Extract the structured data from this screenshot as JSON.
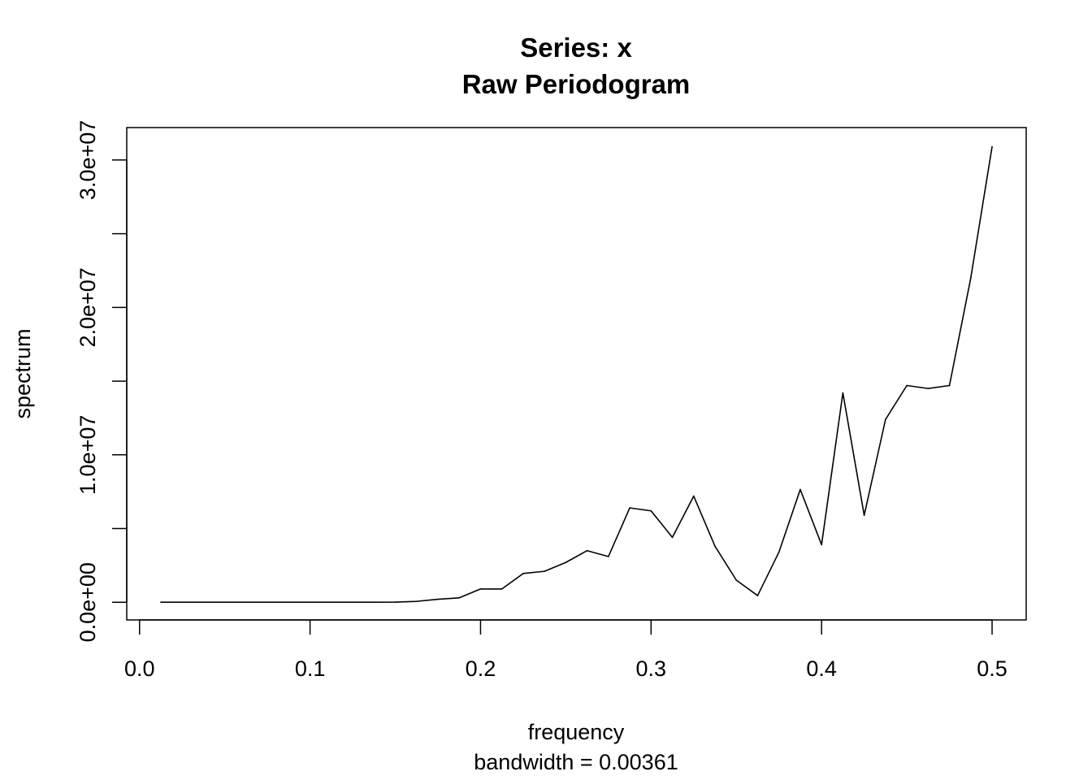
{
  "chart_data": {
    "type": "line",
    "title": "Series: x",
    "subtitle": "Raw Periodogram",
    "xlabel": "frequency",
    "xsublabel": "bandwidth = 0.00361",
    "ylabel": "spectrum",
    "xlim": [
      -0.0075,
      0.52
    ],
    "ylim": [
      -1200000,
      32200000
    ],
    "grid": false,
    "x_ticks": [
      0.0,
      0.1,
      0.2,
      0.3,
      0.4,
      0.5
    ],
    "x_tick_labels": [
      "0.0",
      "0.1",
      "0.2",
      "0.3",
      "0.4",
      "0.5"
    ],
    "y_ticks": [
      0,
      5000000,
      10000000,
      15000000,
      20000000,
      25000000,
      30000000
    ],
    "y_tick_labels": [
      "0.0e+00",
      "",
      "1.0e+07",
      "",
      "2.0e+07",
      "",
      "3.0e+07"
    ],
    "x": [
      0.0125,
      0.025,
      0.0375,
      0.05,
      0.0625,
      0.075,
      0.0875,
      0.1,
      0.1125,
      0.125,
      0.1375,
      0.15,
      0.1625,
      0.175,
      0.1875,
      0.2,
      0.2125,
      0.225,
      0.2375,
      0.25,
      0.2625,
      0.275,
      0.2875,
      0.3,
      0.3125,
      0.325,
      0.3375,
      0.35,
      0.3625,
      0.375,
      0.3875,
      0.4,
      0.4125,
      0.425,
      0.4375,
      0.45,
      0.4625,
      0.475,
      0.4875,
      0.5
    ],
    "y": [
      0,
      0,
      0,
      0,
      0,
      0,
      0,
      0,
      0,
      0,
      0,
      10000,
      60000,
      200000,
      300000,
      900000,
      900000,
      1950000,
      2100000,
      2700000,
      3500000,
      3100000,
      6400000,
      6200000,
      4400000,
      7200000,
      3800000,
      1500000,
      450000,
      3400000,
      7650000,
      3900000,
      14200000,
      5900000,
      12400000,
      14700000,
      14500000,
      14700000,
      22000000,
      30900000
    ],
    "colors": {
      "line": "#000000",
      "axis": "#000000",
      "background": "#ffffff"
    }
  }
}
